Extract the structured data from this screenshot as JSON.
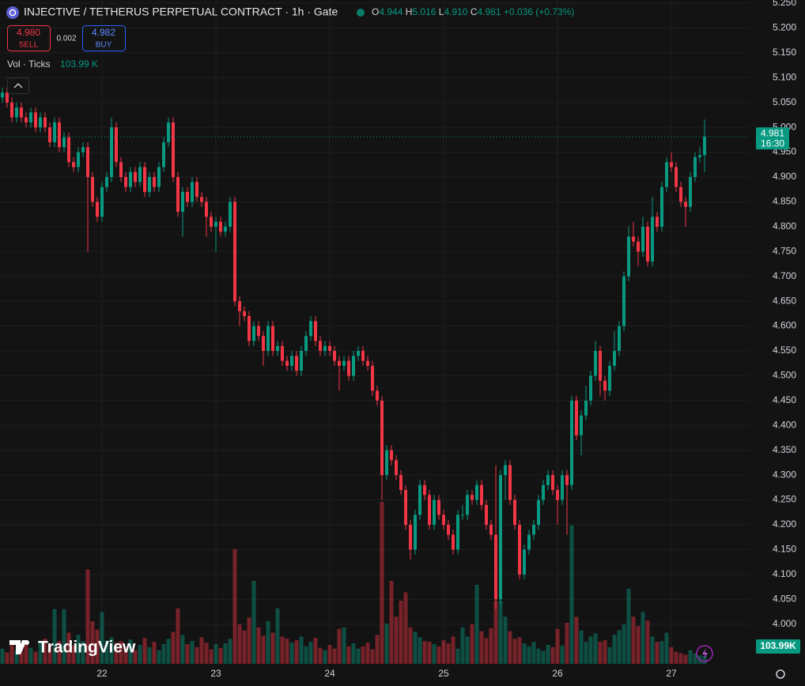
{
  "chart_data": {
    "type": "candlestick",
    "title": "INJECTIVE / TETHERUS PERPETUAL CONTRACT · 1h · Gate",
    "legend": [
      {
        "key": "O",
        "value": "4.944"
      },
      {
        "key": "H",
        "value": "5.016"
      },
      {
        "key": "L",
        "value": "4.910"
      },
      {
        "key": "C",
        "value": "4.981"
      }
    ],
    "change": "+0.036 (+0.73%)",
    "sell": {
      "price": "4.980",
      "label": "SELL"
    },
    "spread": "0.002",
    "buy": {
      "price": "4.982",
      "label": "BUY"
    },
    "volume_title": "Vol · Ticks",
    "volume_value": "103.99 K",
    "brand": "TradingView",
    "last_price_label": "4.981",
    "countdown": "16:30",
    "last_volume_label": "103.99K",
    "up_color": "#089981",
    "down_color": "#f23645",
    "grid": true,
    "xlim": [
      -0.5,
      157.5
    ],
    "xticks": [
      {
        "value": 21,
        "label": "22"
      },
      {
        "value": 45,
        "label": "23"
      },
      {
        "value": 69,
        "label": "24"
      },
      {
        "value": 93,
        "label": "25"
      },
      {
        "value": 117,
        "label": "26"
      },
      {
        "value": 141,
        "label": "27"
      }
    ],
    "ylim": [
      3.92,
      5.25
    ],
    "yticks": [
      {
        "value": 4.0,
        "label": "4.000"
      },
      {
        "value": 4.05,
        "label": "4.050"
      },
      {
        "value": 4.1,
        "label": "4.100"
      },
      {
        "value": 4.15,
        "label": "4.150"
      },
      {
        "value": 4.2,
        "label": "4.200"
      },
      {
        "value": 4.25,
        "label": "4.250"
      },
      {
        "value": 4.3,
        "label": "4.300"
      },
      {
        "value": 4.35,
        "label": "4.350"
      },
      {
        "value": 4.4,
        "label": "4.400"
      },
      {
        "value": 4.45,
        "label": "4.450"
      },
      {
        "value": 4.5,
        "label": "4.500"
      },
      {
        "value": 4.55,
        "label": "4.550"
      },
      {
        "value": 4.6,
        "label": "4.600"
      },
      {
        "value": 4.65,
        "label": "4.650"
      },
      {
        "value": 4.7,
        "label": "4.700"
      },
      {
        "value": 4.75,
        "label": "4.750"
      },
      {
        "value": 4.8,
        "label": "4.800"
      },
      {
        "value": 4.85,
        "label": "4.850"
      },
      {
        "value": 4.9,
        "label": "4.900"
      },
      {
        "value": 4.95,
        "label": "4.950"
      },
      {
        "value": 5.0,
        "label": "5.000"
      },
      {
        "value": 5.05,
        "label": "5.050"
      },
      {
        "value": 5.1,
        "label": "5.100"
      },
      {
        "value": 5.15,
        "label": "5.150"
      },
      {
        "value": 5.2,
        "label": "5.200"
      },
      {
        "value": 5.25,
        "label": "5.250"
      }
    ],
    "candles": [
      [
        5.06,
        5.08,
        5.05,
        5.07
      ],
      [
        5.07,
        5.08,
        5.04,
        5.05
      ],
      [
        5.05,
        5.06,
        5.01,
        5.02
      ],
      [
        5.02,
        5.05,
        5.01,
        5.04
      ],
      [
        5.04,
        5.05,
        5.01,
        5.02
      ],
      [
        5.02,
        5.03,
        5.0,
        5.01
      ],
      [
        5.01,
        5.04,
        5.0,
        5.03
      ],
      [
        5.03,
        5.04,
        4.99,
        5.0
      ],
      [
        5.0,
        5.03,
        4.99,
        5.02
      ],
      [
        5.02,
        5.03,
        4.99,
        5.0
      ],
      [
        5.0,
        5.01,
        4.96,
        4.97
      ],
      [
        4.97,
        5.02,
        4.96,
        5.01
      ],
      [
        5.01,
        5.02,
        4.95,
        4.96
      ],
      [
        4.96,
        4.99,
        4.95,
        4.98
      ],
      [
        4.98,
        4.99,
        4.92,
        4.93
      ],
      [
        4.93,
        4.94,
        4.91,
        4.92
      ],
      [
        4.92,
        4.96,
        4.91,
        4.95
      ],
      [
        4.95,
        4.97,
        4.94,
        4.96
      ],
      [
        4.96,
        4.97,
        4.75,
        4.9
      ],
      [
        4.9,
        4.91,
        4.84,
        4.85
      ],
      [
        4.85,
        4.86,
        4.81,
        4.82
      ],
      [
        4.82,
        4.89,
        4.81,
        4.88
      ],
      [
        4.88,
        4.91,
        4.87,
        4.9
      ],
      [
        4.9,
        5.02,
        4.89,
        5.0
      ],
      [
        5.0,
        5.01,
        4.92,
        4.93
      ],
      [
        4.93,
        4.94,
        4.89,
        4.9
      ],
      [
        4.9,
        4.91,
        4.87,
        4.88
      ],
      [
        4.88,
        4.92,
        4.87,
        4.91
      ],
      [
        4.91,
        4.92,
        4.88,
        4.89
      ],
      [
        4.89,
        4.93,
        4.88,
        4.92
      ],
      [
        4.92,
        4.93,
        4.86,
        4.87
      ],
      [
        4.87,
        4.91,
        4.86,
        4.9
      ],
      [
        4.9,
        4.91,
        4.87,
        4.88
      ],
      [
        4.88,
        4.93,
        4.87,
        4.92
      ],
      [
        4.92,
        4.98,
        4.91,
        4.97
      ],
      [
        4.97,
        5.02,
        4.96,
        5.01
      ],
      [
        5.01,
        5.02,
        4.89,
        4.9
      ],
      [
        4.9,
        4.91,
        4.82,
        4.83
      ],
      [
        4.83,
        4.88,
        4.78,
        4.87
      ],
      [
        4.87,
        4.88,
        4.84,
        4.85
      ],
      [
        4.85,
        4.9,
        4.84,
        4.89
      ],
      [
        4.89,
        4.9,
        4.85,
        4.86
      ],
      [
        4.86,
        4.87,
        4.84,
        4.85
      ],
      [
        4.85,
        4.86,
        4.78,
        4.82
      ],
      [
        4.82,
        4.83,
        4.79,
        4.8
      ],
      [
        4.8,
        4.82,
        4.75,
        4.81
      ],
      [
        4.81,
        4.82,
        4.78,
        4.79
      ],
      [
        4.79,
        4.81,
        4.78,
        4.8
      ],
      [
        4.8,
        4.86,
        4.79,
        4.85
      ],
      [
        4.85,
        4.86,
        4.64,
        4.65
      ],
      [
        4.65,
        4.66,
        4.6,
        4.63
      ],
      [
        4.63,
        4.64,
        4.61,
        4.62
      ],
      [
        4.62,
        4.63,
        4.56,
        4.57
      ],
      [
        4.57,
        4.61,
        4.56,
        4.6
      ],
      [
        4.6,
        4.61,
        4.57,
        4.58
      ],
      [
        4.58,
        4.59,
        4.52,
        4.55
      ],
      [
        4.55,
        4.61,
        4.54,
        4.6
      ],
      [
        4.6,
        4.61,
        4.54,
        4.55
      ],
      [
        4.55,
        4.57,
        4.54,
        4.56
      ],
      [
        4.56,
        4.57,
        4.52,
        4.53
      ],
      [
        4.53,
        4.54,
        4.51,
        4.52
      ],
      [
        4.52,
        4.55,
        4.51,
        4.54
      ],
      [
        4.54,
        4.55,
        4.5,
        4.51
      ],
      [
        4.51,
        4.56,
        4.5,
        4.55
      ],
      [
        4.55,
        4.59,
        4.54,
        4.58
      ],
      [
        4.58,
        4.62,
        4.57,
        4.61
      ],
      [
        4.61,
        4.62,
        4.56,
        4.57
      ],
      [
        4.57,
        4.58,
        4.54,
        4.55
      ],
      [
        4.55,
        4.57,
        4.54,
        4.56
      ],
      [
        4.56,
        4.57,
        4.54,
        4.55
      ],
      [
        4.55,
        4.56,
        4.52,
        4.53
      ],
      [
        4.53,
        4.54,
        4.47,
        4.52
      ],
      [
        4.52,
        4.54,
        4.51,
        4.53
      ],
      [
        4.53,
        4.54,
        4.49,
        4.5
      ],
      [
        4.5,
        4.55,
        4.49,
        4.54
      ],
      [
        4.54,
        4.56,
        4.53,
        4.55
      ],
      [
        4.55,
        4.56,
        4.52,
        4.53
      ],
      [
        4.53,
        4.54,
        4.51,
        4.52
      ],
      [
        4.52,
        4.53,
        4.46,
        4.47
      ],
      [
        4.47,
        4.48,
        4.44,
        4.45
      ],
      [
        4.45,
        4.46,
        4.25,
        4.3
      ],
      [
        4.3,
        4.36,
        4.29,
        4.35
      ],
      [
        4.35,
        4.36,
        4.32,
        4.33
      ],
      [
        4.33,
        4.34,
        4.29,
        4.3
      ],
      [
        4.3,
        4.31,
        4.26,
        4.27
      ],
      [
        4.27,
        4.28,
        4.19,
        4.2
      ],
      [
        4.2,
        4.21,
        4.13,
        4.15
      ],
      [
        4.15,
        4.23,
        4.14,
        4.22
      ],
      [
        4.22,
        4.29,
        4.21,
        4.28
      ],
      [
        4.28,
        4.29,
        4.25,
        4.26
      ],
      [
        4.26,
        4.27,
        4.19,
        4.2
      ],
      [
        4.2,
        4.26,
        4.19,
        4.25
      ],
      [
        4.25,
        4.26,
        4.21,
        4.22
      ],
      [
        4.22,
        4.23,
        4.19,
        4.2
      ],
      [
        4.2,
        4.21,
        4.17,
        4.18
      ],
      [
        4.18,
        4.19,
        4.14,
        4.15
      ],
      [
        4.15,
        4.23,
        4.14,
        4.22
      ],
      [
        4.22,
        4.24,
        4.21,
        4.22
      ],
      [
        4.22,
        4.27,
        4.21,
        4.26
      ],
      [
        4.26,
        4.27,
        4.24,
        4.25
      ],
      [
        4.25,
        4.29,
        4.24,
        4.28
      ],
      [
        4.28,
        4.29,
        4.23,
        4.24
      ],
      [
        4.24,
        4.25,
        4.19,
        4.2
      ],
      [
        4.2,
        4.21,
        4.17,
        4.18
      ],
      [
        4.18,
        4.32,
        4.03,
        4.05
      ],
      [
        4.05,
        4.31,
        4.04,
        4.3
      ],
      [
        4.3,
        4.33,
        4.25,
        4.32
      ],
      [
        4.32,
        4.33,
        4.24,
        4.25
      ],
      [
        4.25,
        4.26,
        4.19,
        4.2
      ],
      [
        4.2,
        4.21,
        4.09,
        4.1
      ],
      [
        4.1,
        4.16,
        4.09,
        4.15
      ],
      [
        4.15,
        4.19,
        4.14,
        4.18
      ],
      [
        4.18,
        4.21,
        4.17,
        4.2
      ],
      [
        4.2,
        4.26,
        4.19,
        4.25
      ],
      [
        4.25,
        4.29,
        4.24,
        4.28
      ],
      [
        4.28,
        4.31,
        4.27,
        4.3
      ],
      [
        4.3,
        4.31,
        4.26,
        4.27
      ],
      [
        4.27,
        4.28,
        4.2,
        4.25
      ],
      [
        4.25,
        4.31,
        4.24,
        4.3
      ],
      [
        4.3,
        4.31,
        4.18,
        4.28
      ],
      [
        4.28,
        4.46,
        4.27,
        4.45
      ],
      [
        4.45,
        4.46,
        4.37,
        4.38
      ],
      [
        4.38,
        4.43,
        4.34,
        4.42
      ],
      [
        4.42,
        4.48,
        4.41,
        4.45
      ],
      [
        4.45,
        4.51,
        4.44,
        4.5
      ],
      [
        4.5,
        4.57,
        4.49,
        4.55
      ],
      [
        4.55,
        4.56,
        4.46,
        4.49
      ],
      [
        4.49,
        4.5,
        4.45,
        4.47
      ],
      [
        4.47,
        4.53,
        4.46,
        4.52
      ],
      [
        4.52,
        4.59,
        4.51,
        4.55
      ],
      [
        4.55,
        4.61,
        4.54,
        4.6
      ],
      [
        4.6,
        4.71,
        4.59,
        4.7
      ],
      [
        4.7,
        4.8,
        4.69,
        4.78
      ],
      [
        4.78,
        4.81,
        4.76,
        4.77
      ],
      [
        4.77,
        4.78,
        4.72,
        4.75
      ],
      [
        4.75,
        4.82,
        4.74,
        4.8
      ],
      [
        4.8,
        4.81,
        4.72,
        4.73
      ],
      [
        4.73,
        4.86,
        4.72,
        4.82
      ],
      [
        4.82,
        4.83,
        4.79,
        4.8
      ],
      [
        4.8,
        4.89,
        4.79,
        4.88
      ],
      [
        4.88,
        4.94,
        4.87,
        4.93
      ],
      [
        4.93,
        4.95,
        4.91,
        4.92
      ],
      [
        4.92,
        4.93,
        4.87,
        4.88
      ],
      [
        4.88,
        4.89,
        4.84,
        4.85
      ],
      [
        4.85,
        4.86,
        4.8,
        4.84
      ],
      [
        4.84,
        4.91,
        4.83,
        4.9
      ],
      [
        4.9,
        4.95,
        4.89,
        4.94
      ],
      [
        4.94,
        4.96,
        4.93,
        4.944
      ],
      [
        4.944,
        5.016,
        4.91,
        4.981
      ]
    ],
    "volumes": [
      200,
      150,
      260,
      180,
      220,
      300,
      210,
      160,
      280,
      330,
      250,
      720,
      300,
      720,
      410,
      240,
      380,
      300,
      1240,
      560,
      450,
      680,
      310,
      350,
      280,
      300,
      230,
      320,
      180,
      250,
      340,
      220,
      290,
      180,
      260,
      330,
      420,
      730,
      380,
      260,
      300,
      220,
      350,
      280,
      190,
      260,
      210,
      270,
      330,
      1510,
      520,
      440,
      610,
      1090,
      480,
      370,
      560,
      410,
      730,
      360,
      330,
      280,
      310,
      360,
      230,
      290,
      340,
      210,
      180,
      250,
      200,
      460,
      480,
      230,
      270,
      200,
      230,
      280,
      190,
      380,
      2130,
      530,
      1090,
      620,
      830,
      940,
      480,
      420,
      350,
      300,
      290,
      260,
      230,
      310,
      270,
      360,
      200,
      480,
      360,
      520,
      1040,
      430,
      340,
      470,
      830,
      830,
      620,
      430,
      330,
      350,
      270,
      230,
      290,
      200,
      170,
      250,
      220,
      460,
      240,
      540,
      1820,
      620,
      440,
      290,
      360,
      400,
      290,
      310,
      220,
      380,
      440,
      520,
      990,
      620,
      500,
      680,
      570,
      360,
      290,
      300,
      410,
      220,
      160,
      140,
      120,
      180,
      140,
      110,
      103.99
    ]
  }
}
